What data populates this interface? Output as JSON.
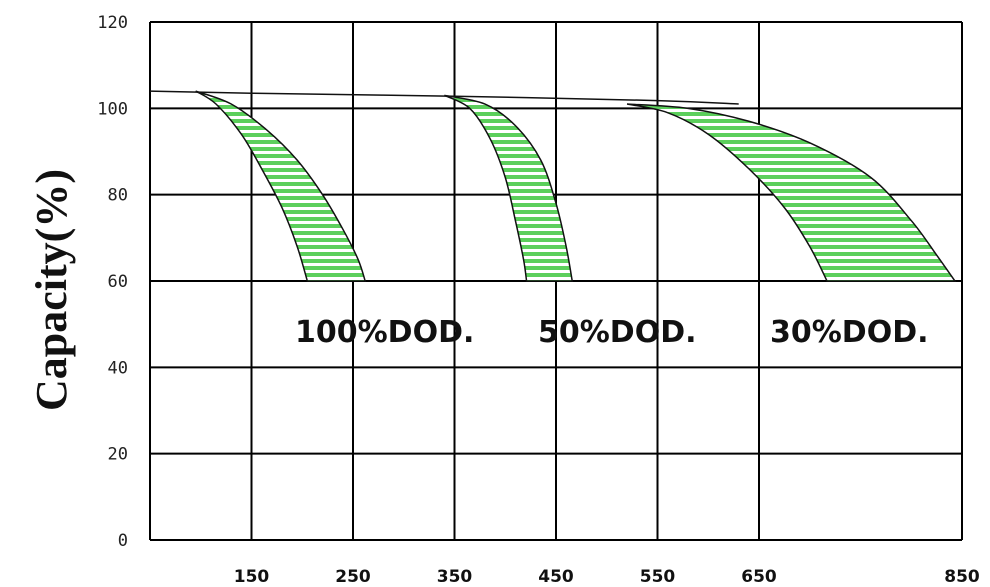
{
  "chart_data": {
    "type": "area",
    "ylabel": "Capacity(%)",
    "xlabel": "",
    "ylim": [
      0,
      120
    ],
    "xlim": [
      50,
      850
    ],
    "y_ticks": [
      "0",
      "20",
      "40",
      "60",
      "80",
      "100",
      "120"
    ],
    "x_ticks": [
      "150",
      "250",
      "350",
      "450",
      "550",
      "650",
      "850"
    ],
    "x_tick_values": [
      150,
      250,
      350,
      450,
      550,
      650,
      850
    ],
    "grid": true,
    "band_color": "#5ccf5c",
    "series": [
      {
        "name": "100%DOD.",
        "upper": {
          "x": [
            95,
            130,
            165,
            195,
            220,
            240,
            255,
            262
          ],
          "y": [
            104,
            101,
            95,
            88,
            80,
            72,
            65,
            60
          ]
        },
        "lower": {
          "x": [
            95,
            115,
            140,
            160,
            180,
            195,
            205
          ],
          "y": [
            104,
            101,
            94,
            86,
            77,
            68,
            60
          ]
        }
      },
      {
        "name": "50%DOD.",
        "upper": {
          "x": [
            340,
            380,
            410,
            435,
            450,
            460,
            466
          ],
          "y": [
            103,
            101,
            96,
            88,
            78,
            68,
            60
          ]
        },
        "lower": {
          "x": [
            340,
            365,
            385,
            400,
            410,
            418,
            421
          ],
          "y": [
            103,
            100,
            93,
            84,
            74,
            65,
            60
          ]
        }
      },
      {
        "name": "30%DOD.",
        "upper": {
          "x": [
            520,
            580,
            640,
            700,
            760,
            800,
            825,
            843
          ],
          "y": [
            101,
            100,
            97,
            92,
            84,
            74,
            66,
            60
          ]
        },
        "lower": {
          "x": [
            520,
            560,
            600,
            640,
            675,
            700,
            717
          ],
          "y": [
            101,
            99,
            94,
            86,
            77,
            68,
            60
          ]
        }
      }
    ],
    "trend_line": {
      "x": [
        50,
        150,
        350,
        550,
        630
      ],
      "y": [
        104,
        103.5,
        102.8,
        101.8,
        101
      ]
    },
    "annotations": [
      "100%DOD.",
      "50%DOD.",
      "30%DOD."
    ]
  }
}
